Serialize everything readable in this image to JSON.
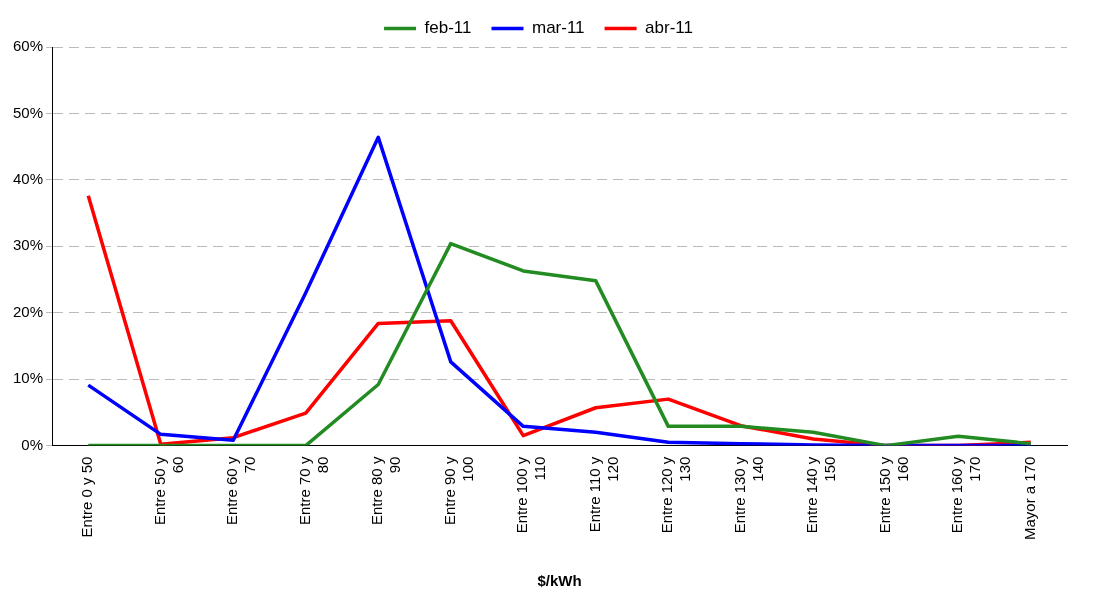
{
  "chart_data": {
    "type": "line",
    "xlabel": "$/kWh",
    "categories": [
      "Entre 0 y 50",
      "Entre 50 y 60",
      "Entre 60 y 70",
      "Entre 70 y 80",
      "Entre 80 y 90",
      "Entre 90 y 100",
      "Entre 100 y 110",
      "Entre 110 y 120",
      "Entre 120 y 130",
      "Entre 130 y 140",
      "Entre 140 y 150",
      "Entre 150 y 160",
      "Entre 160 y 170",
      "Mayor a 170"
    ],
    "series": [
      {
        "name": "feb-11",
        "color": "#228b22",
        "values": [
          0,
          0,
          0,
          0,
          9.2,
          30.4,
          26.3,
          24.8,
          2.9,
          2.9,
          2.0,
          0,
          1.4,
          0.3
        ]
      },
      {
        "name": "mar-11",
        "color": "#0000ff",
        "values": [
          9.1,
          1.7,
          0.8,
          23.0,
          46.4,
          12.6,
          2.9,
          2.0,
          0.5,
          0.3,
          0.1,
          0,
          0,
          0
        ]
      },
      {
        "name": "abr-11",
        "color": "#ff0000",
        "values": [
          37.6,
          0.2,
          1.2,
          4.9,
          18.4,
          18.8,
          1.5,
          5.7,
          7.0,
          3.0,
          1.0,
          0,
          0,
          0.5
        ]
      }
    ],
    "ylim": [
      0,
      60
    ],
    "yticks": [
      {
        "value": 0,
        "label": "0%"
      },
      {
        "value": 10,
        "label": "10%"
      },
      {
        "value": 20,
        "label": "20%"
      },
      {
        "value": 30,
        "label": "30%"
      },
      {
        "value": 40,
        "label": "40%"
      },
      {
        "value": 50,
        "label": "50%"
      },
      {
        "value": 60,
        "label": "60%"
      }
    ],
    "grid": "y",
    "legend": "top",
    "marker": "none",
    "line_style": "solid"
  }
}
